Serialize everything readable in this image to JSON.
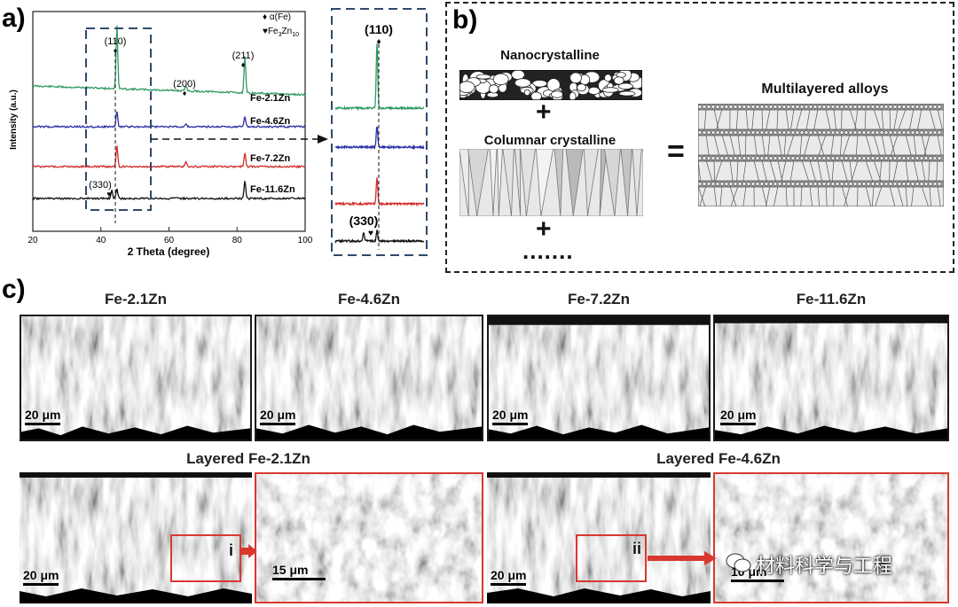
{
  "panel_labels": {
    "a": "a)",
    "b": "b)",
    "c": "c)"
  },
  "panel_a": {
    "ylabel": "Intensity (a.u.)",
    "xlabel": "2 Theta (degree)",
    "xticks": [
      "20",
      "40",
      "60",
      "80",
      "100"
    ],
    "legend": {
      "alpha": "♦ α(Fe)",
      "gamma_base": "♥Fe",
      "gamma_sub1": "3",
      "gamma_mid": "Zn",
      "gamma_sub2": "10"
    },
    "peaks": {
      "p110": "(110)",
      "p200": "(200)",
      "p211": "(211)",
      "p330": "(330)"
    },
    "samples": [
      "Fe-2.1Zn",
      "Fe-4.6Zn",
      "Fe-7.2Zn",
      "Fe-11.6Zn"
    ],
    "inset": {
      "p110": "(110)",
      "p330": "(330)"
    },
    "colors": {
      "s1": "#2e9a63",
      "s2": "#2a2fa6",
      "s3": "#d42a2a",
      "s4": "#111111",
      "dashbox": "#2f4a6b"
    }
  },
  "chart_data": {
    "type": "line",
    "title": "",
    "xlabel": "2 Theta (degree)",
    "ylabel": "Intensity (a.u.)",
    "xlim": [
      20,
      100
    ],
    "x_ticks": [
      20,
      40,
      60,
      80,
      100
    ],
    "series": [
      {
        "name": "Fe-2.1Zn",
        "peaks": [
          {
            "x": 44.7,
            "label": "(110)"
          },
          {
            "x": 65.0,
            "label": "(200)"
          },
          {
            "x": 82.3,
            "label": "(211)"
          }
        ]
      },
      {
        "name": "Fe-4.6Zn",
        "peaks": [
          {
            "x": 44.7
          },
          {
            "x": 65.0
          },
          {
            "x": 82.3
          }
        ]
      },
      {
        "name": "Fe-7.2Zn",
        "peaks": [
          {
            "x": 44.7
          },
          {
            "x": 65.0
          },
          {
            "x": 82.3
          }
        ]
      },
      {
        "name": "Fe-11.6Zn",
        "peaks": [
          {
            "x": 43.2,
            "label": "(330)"
          },
          {
            "x": 44.7
          },
          {
            "x": 82.3
          }
        ]
      }
    ]
  },
  "panel_b": {
    "nano_label": "Nanocrystalline",
    "columnar_label": "Columnar crystalline",
    "plus": "+",
    "equals": "=",
    "dots": ".......",
    "multi_label": "Multilayered alloys"
  },
  "panel_c": {
    "top_titles": [
      "Fe-2.1Zn",
      "Fe-4.6Zn",
      "Fe-7.2Zn",
      "Fe-11.6Zn"
    ],
    "bottom_titles": [
      "Layered Fe-2.1Zn",
      "Layered Fe-4.6Zn"
    ],
    "scale_20": "20 μm",
    "scale_15": "15 μm",
    "scale_10": "10 μm",
    "roi_i": "i",
    "roi_ii": "ii"
  },
  "watermark": "材料科学与工程"
}
